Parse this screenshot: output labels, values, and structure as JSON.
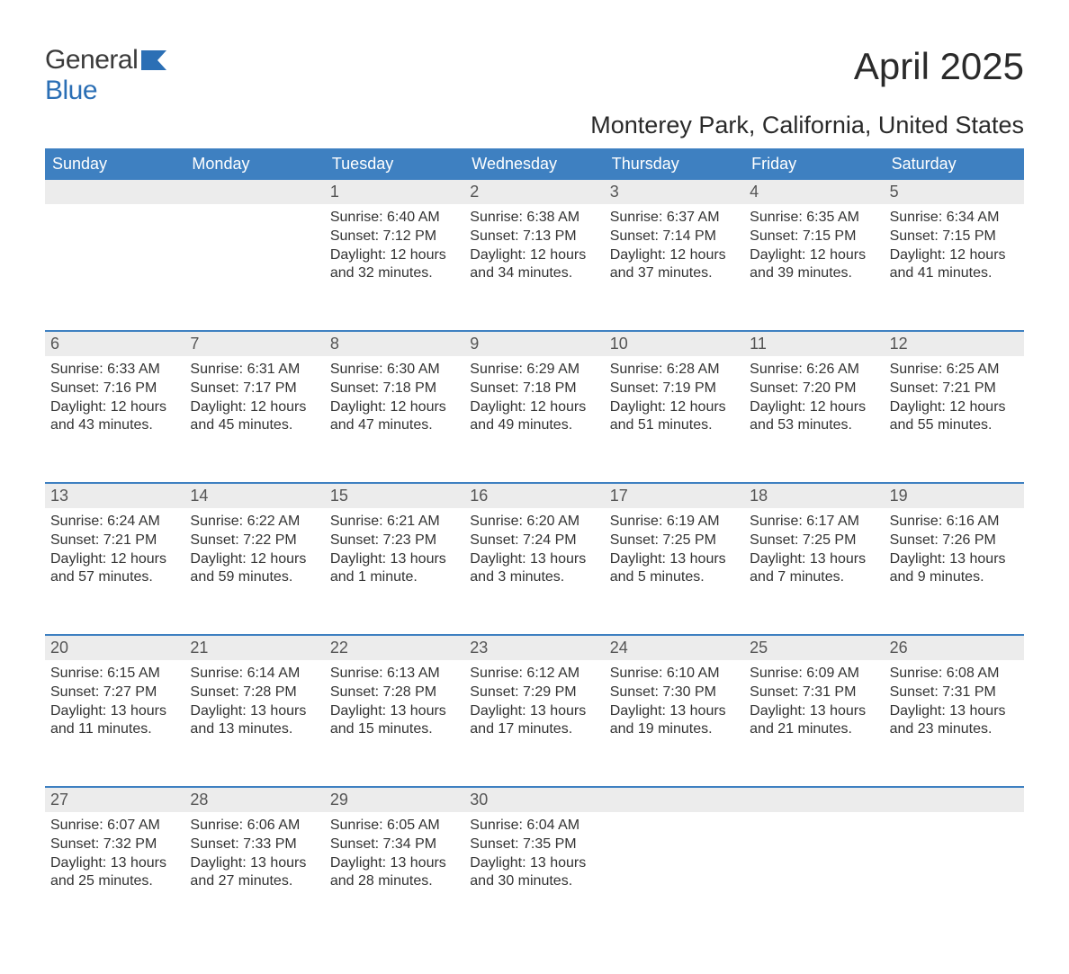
{
  "logo": {
    "text1": "General",
    "text2": "Blue",
    "icon_fill": "#2b6fb5"
  },
  "title": "April 2025",
  "location": "Monterey Park, California, United States",
  "colors": {
    "header_bg": "#3e80c1",
    "header_text": "#ffffff",
    "daystrip_bg": "#ececec",
    "week_border": "#3e80c1",
    "body_text": "#333333",
    "page_bg": "#ffffff"
  },
  "weekdays": [
    "Sunday",
    "Monday",
    "Tuesday",
    "Wednesday",
    "Thursday",
    "Friday",
    "Saturday"
  ],
  "weeks": [
    [
      {
        "num": "",
        "lines": []
      },
      {
        "num": "",
        "lines": []
      },
      {
        "num": "1",
        "lines": [
          "Sunrise: 6:40 AM",
          "Sunset: 7:12 PM",
          "Daylight: 12 hours",
          "and 32 minutes."
        ]
      },
      {
        "num": "2",
        "lines": [
          "Sunrise: 6:38 AM",
          "Sunset: 7:13 PM",
          "Daylight: 12 hours",
          "and 34 minutes."
        ]
      },
      {
        "num": "3",
        "lines": [
          "Sunrise: 6:37 AM",
          "Sunset: 7:14 PM",
          "Daylight: 12 hours",
          "and 37 minutes."
        ]
      },
      {
        "num": "4",
        "lines": [
          "Sunrise: 6:35 AM",
          "Sunset: 7:15 PM",
          "Daylight: 12 hours",
          "and 39 minutes."
        ]
      },
      {
        "num": "5",
        "lines": [
          "Sunrise: 6:34 AM",
          "Sunset: 7:15 PM",
          "Daylight: 12 hours",
          "and 41 minutes."
        ]
      }
    ],
    [
      {
        "num": "6",
        "lines": [
          "Sunrise: 6:33 AM",
          "Sunset: 7:16 PM",
          "Daylight: 12 hours",
          "and 43 minutes."
        ]
      },
      {
        "num": "7",
        "lines": [
          "Sunrise: 6:31 AM",
          "Sunset: 7:17 PM",
          "Daylight: 12 hours",
          "and 45 minutes."
        ]
      },
      {
        "num": "8",
        "lines": [
          "Sunrise: 6:30 AM",
          "Sunset: 7:18 PM",
          "Daylight: 12 hours",
          "and 47 minutes."
        ]
      },
      {
        "num": "9",
        "lines": [
          "Sunrise: 6:29 AM",
          "Sunset: 7:18 PM",
          "Daylight: 12 hours",
          "and 49 minutes."
        ]
      },
      {
        "num": "10",
        "lines": [
          "Sunrise: 6:28 AM",
          "Sunset: 7:19 PM",
          "Daylight: 12 hours",
          "and 51 minutes."
        ]
      },
      {
        "num": "11",
        "lines": [
          "Sunrise: 6:26 AM",
          "Sunset: 7:20 PM",
          "Daylight: 12 hours",
          "and 53 minutes."
        ]
      },
      {
        "num": "12",
        "lines": [
          "Sunrise: 6:25 AM",
          "Sunset: 7:21 PM",
          "Daylight: 12 hours",
          "and 55 minutes."
        ]
      }
    ],
    [
      {
        "num": "13",
        "lines": [
          "Sunrise: 6:24 AM",
          "Sunset: 7:21 PM",
          "Daylight: 12 hours",
          "and 57 minutes."
        ]
      },
      {
        "num": "14",
        "lines": [
          "Sunrise: 6:22 AM",
          "Sunset: 7:22 PM",
          "Daylight: 12 hours",
          "and 59 minutes."
        ]
      },
      {
        "num": "15",
        "lines": [
          "Sunrise: 6:21 AM",
          "Sunset: 7:23 PM",
          "Daylight: 13 hours",
          "and 1 minute."
        ]
      },
      {
        "num": "16",
        "lines": [
          "Sunrise: 6:20 AM",
          "Sunset: 7:24 PM",
          "Daylight: 13 hours",
          "and 3 minutes."
        ]
      },
      {
        "num": "17",
        "lines": [
          "Sunrise: 6:19 AM",
          "Sunset: 7:25 PM",
          "Daylight: 13 hours",
          "and 5 minutes."
        ]
      },
      {
        "num": "18",
        "lines": [
          "Sunrise: 6:17 AM",
          "Sunset: 7:25 PM",
          "Daylight: 13 hours",
          "and 7 minutes."
        ]
      },
      {
        "num": "19",
        "lines": [
          "Sunrise: 6:16 AM",
          "Sunset: 7:26 PM",
          "Daylight: 13 hours",
          "and 9 minutes."
        ]
      }
    ],
    [
      {
        "num": "20",
        "lines": [
          "Sunrise: 6:15 AM",
          "Sunset: 7:27 PM",
          "Daylight: 13 hours",
          "and 11 minutes."
        ]
      },
      {
        "num": "21",
        "lines": [
          "Sunrise: 6:14 AM",
          "Sunset: 7:28 PM",
          "Daylight: 13 hours",
          "and 13 minutes."
        ]
      },
      {
        "num": "22",
        "lines": [
          "Sunrise: 6:13 AM",
          "Sunset: 7:28 PM",
          "Daylight: 13 hours",
          "and 15 minutes."
        ]
      },
      {
        "num": "23",
        "lines": [
          "Sunrise: 6:12 AM",
          "Sunset: 7:29 PM",
          "Daylight: 13 hours",
          "and 17 minutes."
        ]
      },
      {
        "num": "24",
        "lines": [
          "Sunrise: 6:10 AM",
          "Sunset: 7:30 PM",
          "Daylight: 13 hours",
          "and 19 minutes."
        ]
      },
      {
        "num": "25",
        "lines": [
          "Sunrise: 6:09 AM",
          "Sunset: 7:31 PM",
          "Daylight: 13 hours",
          "and 21 minutes."
        ]
      },
      {
        "num": "26",
        "lines": [
          "Sunrise: 6:08 AM",
          "Sunset: 7:31 PM",
          "Daylight: 13 hours",
          "and 23 minutes."
        ]
      }
    ],
    [
      {
        "num": "27",
        "lines": [
          "Sunrise: 6:07 AM",
          "Sunset: 7:32 PM",
          "Daylight: 13 hours",
          "and 25 minutes."
        ]
      },
      {
        "num": "28",
        "lines": [
          "Sunrise: 6:06 AM",
          "Sunset: 7:33 PM",
          "Daylight: 13 hours",
          "and 27 minutes."
        ]
      },
      {
        "num": "29",
        "lines": [
          "Sunrise: 6:05 AM",
          "Sunset: 7:34 PM",
          "Daylight: 13 hours",
          "and 28 minutes."
        ]
      },
      {
        "num": "30",
        "lines": [
          "Sunrise: 6:04 AM",
          "Sunset: 7:35 PM",
          "Daylight: 13 hours",
          "and 30 minutes."
        ]
      },
      {
        "num": "",
        "lines": []
      },
      {
        "num": "",
        "lines": []
      },
      {
        "num": "",
        "lines": []
      }
    ]
  ]
}
